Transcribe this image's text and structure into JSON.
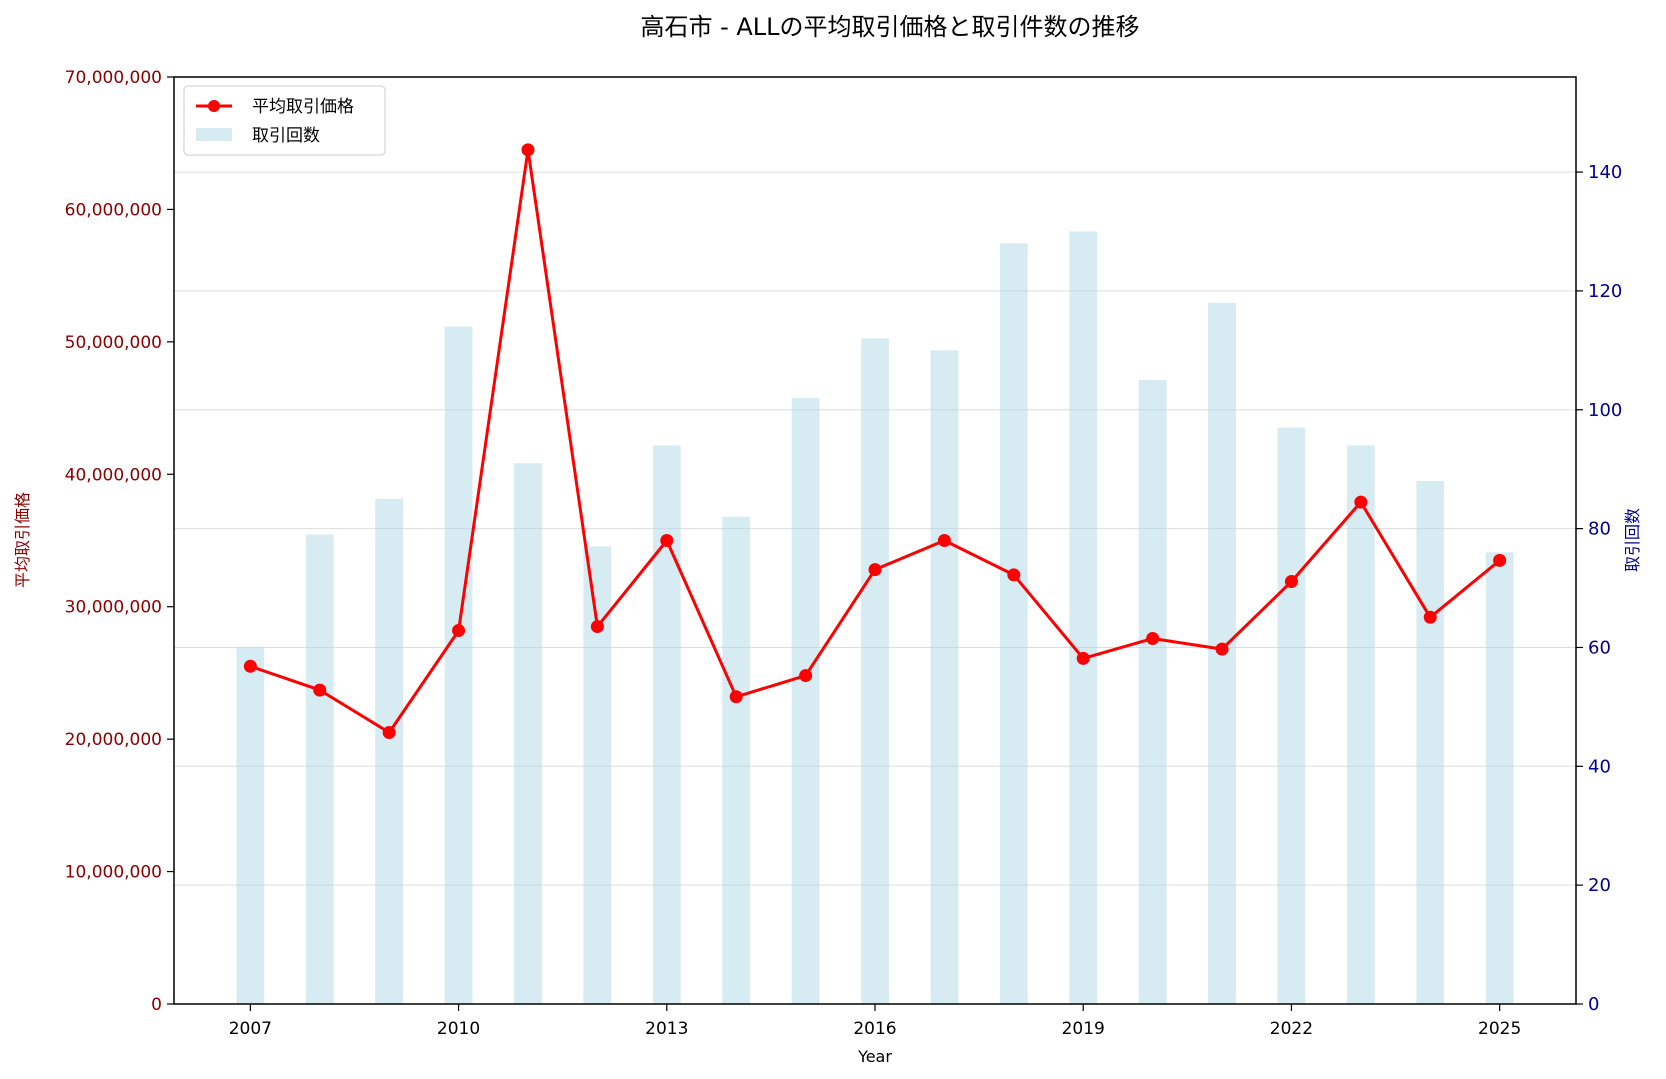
{
  "chart_data": {
    "type": "line+bar",
    "title": "高石市 - ALLの平均取引価格と取引件数の推移",
    "xlabel": "Year",
    "ylabel_left": "平均取引価格",
    "ylabel_right": "取引回数",
    "x": [
      2007,
      2008,
      2009,
      2010,
      2011,
      2012,
      2013,
      2014,
      2015,
      2016,
      2017,
      2018,
      2019,
      2020,
      2021,
      2022,
      2023,
      2024,
      2025
    ],
    "x_ticks": [
      "2007",
      "2010",
      "2013",
      "2016",
      "2019",
      "2022",
      "2025"
    ],
    "xlim": [
      2005.9,
      2026.1
    ],
    "ylim_left": [
      0,
      70000000
    ],
    "ylim_right": [
      0,
      156
    ],
    "y_ticks_left": [
      "0",
      "10,000,000",
      "20,000,000",
      "30,000,000",
      "40,000,000",
      "50,000,000",
      "60,000,000",
      "70,000,000"
    ],
    "y_ticks_right": [
      "0",
      "20",
      "40",
      "60",
      "80",
      "100",
      "120",
      "140"
    ],
    "series": [
      {
        "name": "平均取引価格",
        "type": "line",
        "axis": "left",
        "color": "#ff0000",
        "values": [
          25500000,
          23700000,
          20500000,
          28200000,
          64500000,
          28500000,
          35000000,
          23200000,
          24800000,
          32800000,
          35000000,
          32400000,
          26100000,
          27600000,
          26800000,
          31900000,
          37900000,
          29200000,
          33500000
        ]
      },
      {
        "name": "取引回数",
        "type": "bar",
        "axis": "right",
        "color": "#add8e6",
        "values": [
          60,
          79,
          85,
          114,
          91,
          77,
          94,
          82,
          102,
          112,
          110,
          128,
          130,
          105,
          118,
          97,
          94,
          88,
          76
        ]
      }
    ],
    "legend": {
      "position": "top-left"
    },
    "grid": true
  }
}
